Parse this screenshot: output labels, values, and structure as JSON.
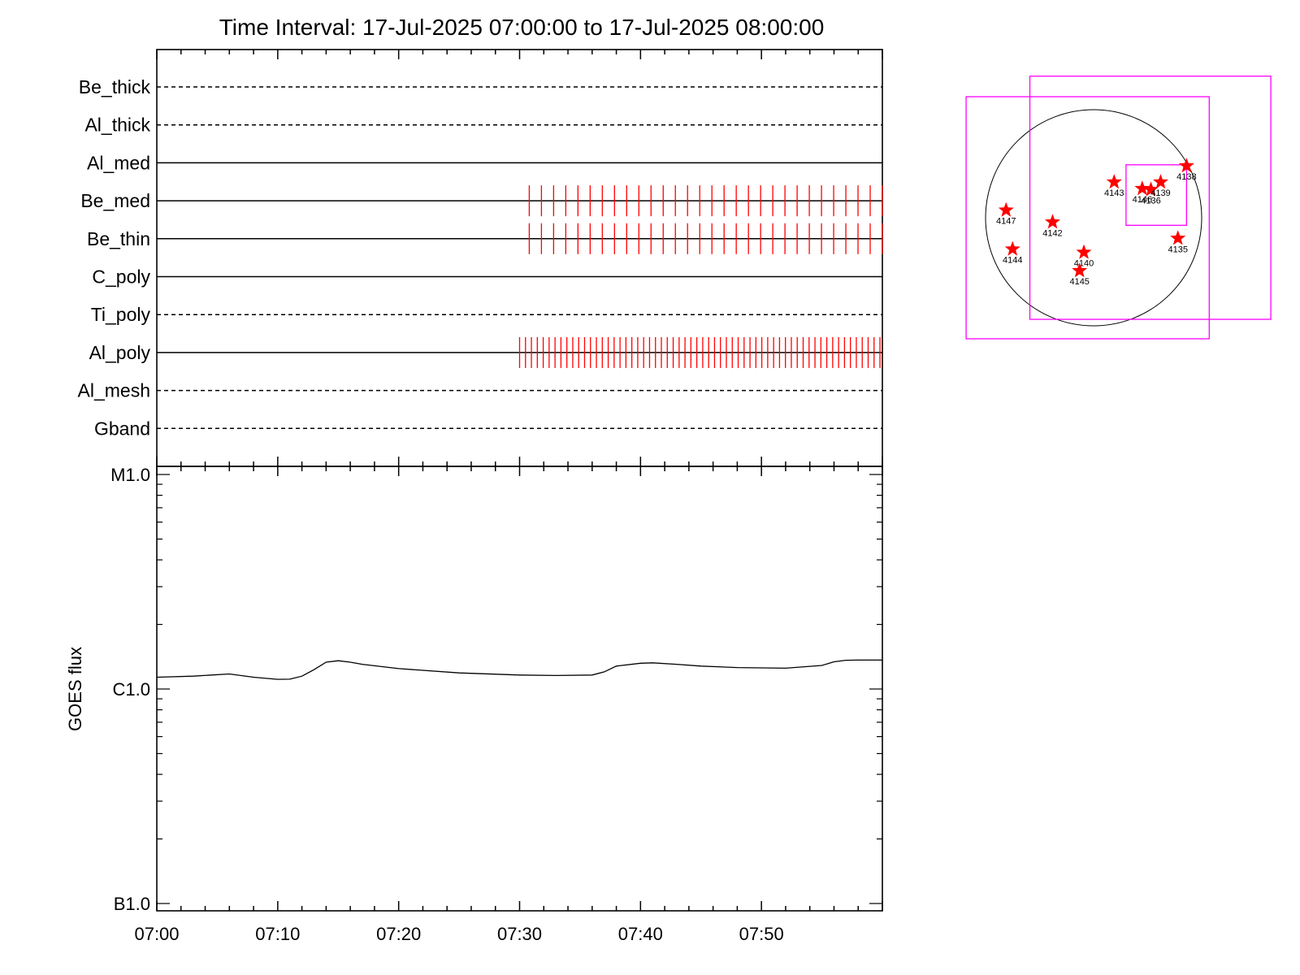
{
  "title": "Time Interval: 17-Jul-2025 07:00:00 to 17-Jul-2025 08:00:00",
  "colors": {
    "axis": "#000000",
    "marker": "#ff0000",
    "fov": "#ff00ff"
  },
  "chart_data": [
    {
      "type": "line",
      "title": "Time Interval: 17-Jul-2025 07:00:00 to 17-Jul-2025 08:00:00",
      "xlim": [
        "07:00",
        "08:00"
      ],
      "filters": [
        {
          "name": "Be_thick",
          "style": "dashed",
          "marks": []
        },
        {
          "name": "Al_thick",
          "style": "dashed",
          "marks": []
        },
        {
          "name": "Al_med",
          "style": "solid",
          "marks": []
        },
        {
          "name": "Be_med",
          "style": "solid",
          "marks": [
            {
              "start_min": 30.8,
              "end_min": 60,
              "count": 30
            }
          ]
        },
        {
          "name": "Be_thin",
          "style": "solid",
          "marks": [
            {
              "start_min": 30.8,
              "end_min": 60,
              "count": 30
            }
          ]
        },
        {
          "name": "C_poly",
          "style": "solid",
          "marks": []
        },
        {
          "name": "Ti_poly",
          "style": "dashed",
          "marks": []
        },
        {
          "name": "Al_poly",
          "style": "solid",
          "marks": [
            {
              "start_min": 30.0,
              "end_min": 59.8,
              "count": 62
            }
          ]
        },
        {
          "name": "Al_mesh",
          "style": "dashed",
          "marks": []
        },
        {
          "name": "Gband",
          "style": "dashed",
          "marks": []
        }
      ]
    },
    {
      "type": "line",
      "ylabel": "GOES flux",
      "yscale": "log",
      "ylim_exp": [
        -7,
        -5
      ],
      "ytick_labels": [
        {
          "label": "B1.0",
          "exp": -7
        },
        {
          "label": "C1.0",
          "exp": -6
        },
        {
          "label": "M1.0",
          "exp": -5
        }
      ],
      "xlim_min": [
        0,
        60
      ],
      "xtick_labels": [
        "07:00",
        "07:10",
        "07:20",
        "07:30",
        "07:40",
        "07:50"
      ],
      "series": [
        {
          "x_min": [
            0,
            3,
            6,
            8,
            10,
            11,
            12,
            13,
            14,
            15,
            16,
            17,
            20,
            25,
            30,
            33,
            36,
            37,
            38,
            40,
            41,
            43,
            45,
            48,
            52,
            55,
            56,
            57,
            58,
            59,
            60
          ],
          "log_flux": [
            -5.945,
            -5.94,
            -5.93,
            -5.945,
            -5.955,
            -5.954,
            -5.94,
            -5.91,
            -5.875,
            -5.868,
            -5.875,
            -5.885,
            -5.905,
            -5.925,
            -5.935,
            -5.937,
            -5.935,
            -5.92,
            -5.893,
            -5.88,
            -5.878,
            -5.885,
            -5.893,
            -5.9,
            -5.903,
            -5.89,
            -5.873,
            -5.866,
            -5.865,
            -5.865,
            -5.865
          ]
        }
      ]
    },
    {
      "type": "scatter",
      "regions": [
        {
          "label": "4147",
          "x": -0.81,
          "y": 0.07
        },
        {
          "label": "4142",
          "x": -0.38,
          "y": -0.04
        },
        {
          "label": "4144",
          "x": -0.75,
          "y": -0.29
        },
        {
          "label": "4140",
          "x": -0.09,
          "y": -0.32
        },
        {
          "label": "4145",
          "x": -0.13,
          "y": -0.49
        },
        {
          "label": "4143",
          "x": 0.19,
          "y": 0.33
        },
        {
          "label": "4146",
          "x": 0.45,
          "y": 0.27
        },
        {
          "label": "4136",
          "x": 0.53,
          "y": 0.26
        },
        {
          "label": "4139",
          "x": 0.62,
          "y": 0.33
        },
        {
          "label": "4138",
          "x": 0.86,
          "y": 0.48
        },
        {
          "label": "4135",
          "x": 0.78,
          "y": -0.19
        }
      ],
      "fov_boxes": [
        {
          "x0": -1.18,
          "y0": -1.12,
          "x1": 1.07,
          "y1": 1.12
        },
        {
          "x0": -0.59,
          "y0": -0.94,
          "x1": 1.64,
          "y1": 1.31
        },
        {
          "x0": 0.3,
          "y0": -0.07,
          "x1": 0.86,
          "y1": 0.49
        }
      ]
    }
  ]
}
